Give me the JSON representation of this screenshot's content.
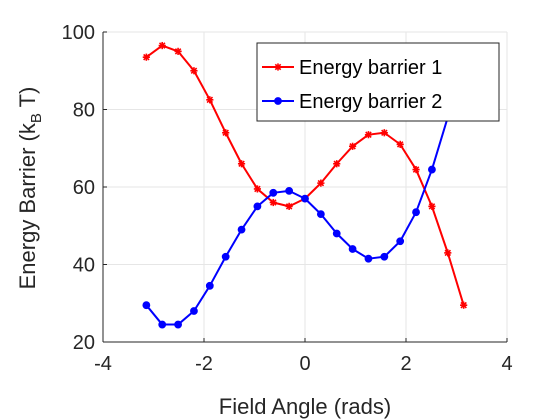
{
  "chart_data": {
    "type": "line",
    "xlabel": "Field Angle (rads)",
    "ylabel_main": "Energy Barrier (k",
    "ylabel_sub": "B",
    "ylabel_end": " T)",
    "xlim": [
      -4,
      4
    ],
    "ylim": [
      20,
      100
    ],
    "xticks": [
      -4,
      -2,
      0,
      2,
      4
    ],
    "yticks": [
      20,
      40,
      60,
      80,
      100
    ],
    "xtick_labels": [
      "-4",
      "-2",
      "0",
      "2",
      "4"
    ],
    "ytick_labels": [
      "20",
      "40",
      "60",
      "80",
      "100"
    ],
    "grid": true,
    "legend_position": "top-right",
    "x": [
      -3.1416,
      -2.8274,
      -2.5133,
      -2.1991,
      -1.885,
      -1.5708,
      -1.2566,
      -0.9425,
      -0.6283,
      -0.3142,
      0,
      0.3142,
      0.6283,
      0.9425,
      1.2566,
      1.5708,
      1.885,
      2.1991,
      2.5133,
      2.8274,
      3.1416
    ],
    "series": [
      {
        "name": "Energy barrier 1",
        "color": "#ff0000",
        "marker": "asterisk",
        "values": [
          93.5,
          96.5,
          95,
          90,
          82.5,
          74,
          66,
          59.5,
          56,
          55,
          57,
          61,
          66,
          70.5,
          73.5,
          74,
          71,
          64.5,
          55,
          43,
          29.5
        ]
      },
      {
        "name": "Energy barrier 2",
        "color": "#0000ff",
        "marker": "dot",
        "values": [
          29.5,
          24.5,
          24.5,
          28,
          34.5,
          42,
          49,
          55,
          58.5,
          59,
          57,
          53,
          48,
          44,
          41.5,
          42,
          46,
          53.5,
          64.5,
          78,
          93
        ]
      }
    ]
  }
}
